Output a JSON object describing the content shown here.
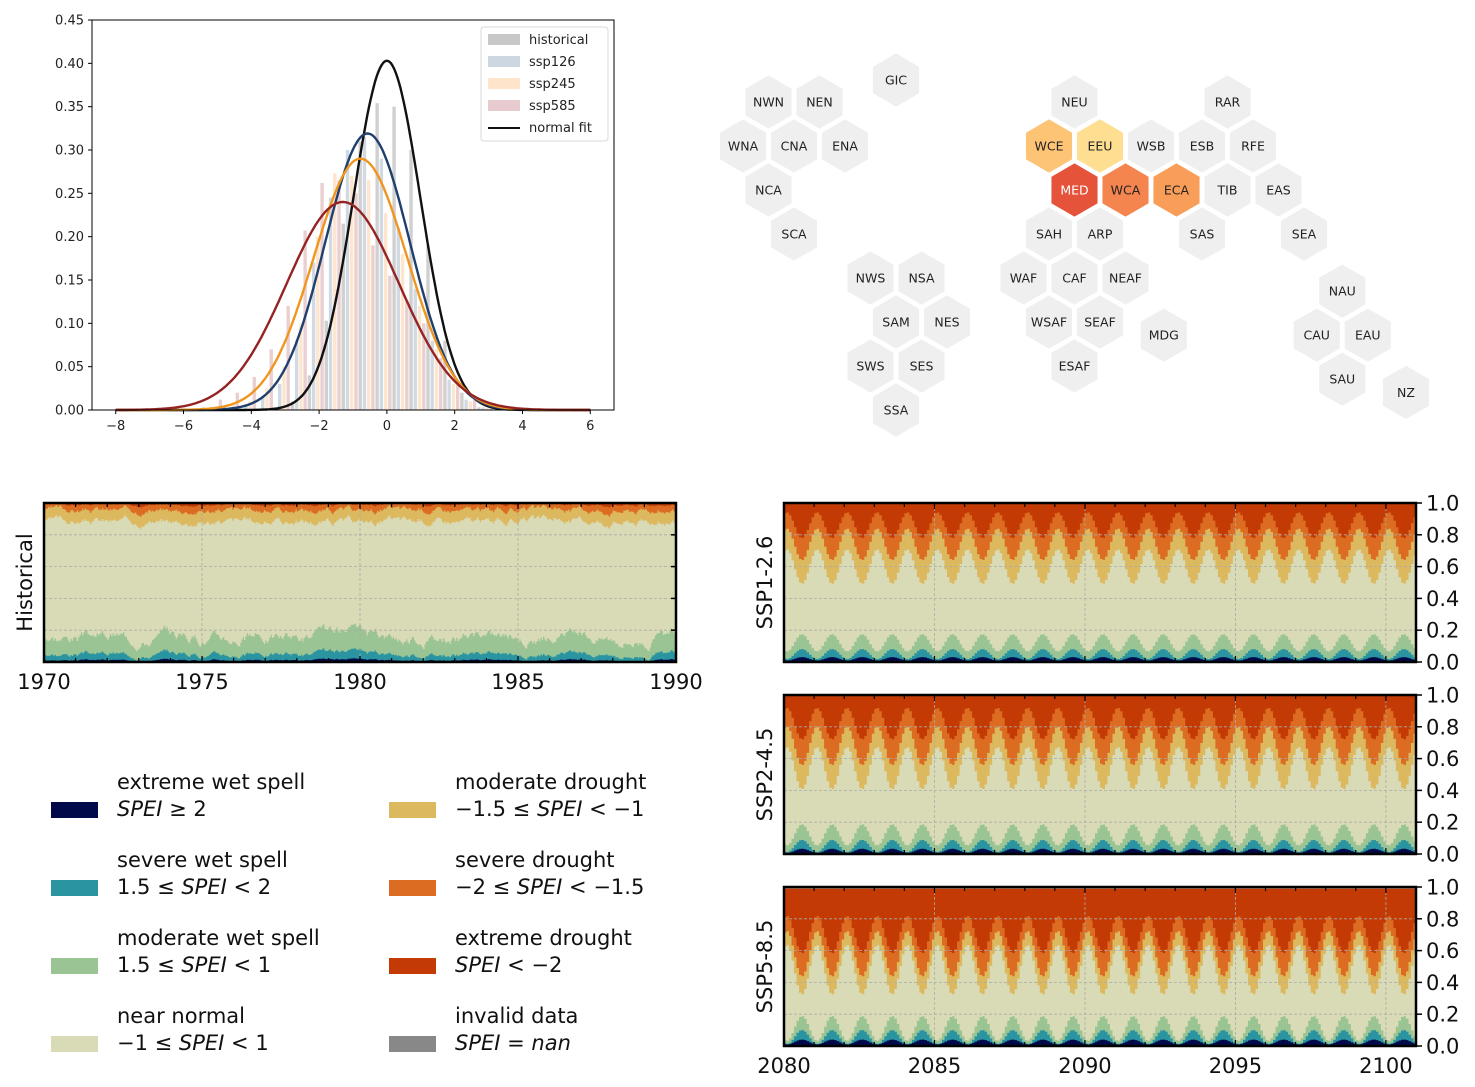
{
  "chart_data": [
    {
      "id": "spei-distribution",
      "type": "bar",
      "title": "",
      "xlabel": "",
      "ylabel": "",
      "xlim": [
        -8.7,
        6.7
      ],
      "ylim": [
        0.0,
        0.45
      ],
      "xticks": [
        -8,
        -6,
        -4,
        -2,
        0,
        2,
        4,
        6
      ],
      "xtick_labels": [
        "−8",
        "−6",
        "−4",
        "−2",
        "0",
        "2",
        "4",
        "6"
      ],
      "yticks": [
        0.0,
        0.05,
        0.1,
        0.15,
        0.2,
        0.25,
        0.3,
        0.35,
        0.4,
        0.45
      ],
      "ytick_labels": [
        "0.00",
        "0.05",
        "0.10",
        "0.15",
        "0.20",
        "0.25",
        "0.30",
        "0.35",
        "0.40",
        "0.45"
      ],
      "grid": false,
      "legend_position": "top-right",
      "bin_centers": [
        -5.6,
        -5.1,
        -4.6,
        -4.1,
        -3.6,
        -3.1,
        -2.6,
        -2.1,
        -1.6,
        -1.1,
        -0.6,
        -0.1,
        0.4,
        0.9,
        1.4,
        1.9,
        2.4,
        2.9
      ],
      "histograms": [
        {
          "name": "historical",
          "color": "#c8c8c8",
          "values": [
            0,
            0,
            0,
            0,
            0,
            0.002,
            0.01,
            0.04,
            0.103,
            0.215,
            0.31,
            0.354,
            0.35,
            0.3,
            0.19,
            0.08,
            0.02,
            0.003
          ]
        },
        {
          "name": "ssp126",
          "color": "#c9d3dd",
          "values": [
            0,
            0,
            0.002,
            0.005,
            0.015,
            0.03,
            0.08,
            0.17,
            0.245,
            0.3,
            0.315,
            0.29,
            0.21,
            0.14,
            0.08,
            0.035,
            0.012,
            0.003
          ]
        },
        {
          "name": "ssp245",
          "color": "#fde1c5",
          "values": [
            0,
            0.002,
            0.007,
            0.01,
            0.025,
            0.05,
            0.1,
            0.2,
            0.273,
            0.27,
            0.265,
            0.227,
            0.18,
            0.12,
            0.07,
            0.03,
            0.01,
            0.002
          ]
        },
        {
          "name": "ssp585",
          "color": "#e6c7c9",
          "values": [
            0.003,
            0.012,
            0.02,
            0.038,
            0.07,
            0.12,
            0.207,
            0.262,
            0.265,
            0.25,
            0.19,
            0.155,
            0.126,
            0.1,
            0.06,
            0.03,
            0.012,
            0.004
          ]
        }
      ],
      "curves": [
        {
          "name": "normal fit",
          "color": "#111111",
          "mean": 0.0,
          "std": 0.99,
          "peak": 0.403,
          "in_legend": true
        },
        {
          "name": "ssp126 fit",
          "color": "#1f3f6e",
          "mean": -0.57,
          "std": 1.25,
          "peak": 0.319,
          "in_legend": false
        },
        {
          "name": "ssp245 fit",
          "color": "#f0961e",
          "mean": -0.78,
          "std": 1.38,
          "peak": 0.29,
          "in_legend": false
        },
        {
          "name": "ssp585 fit",
          "color": "#962323",
          "mean": -1.3,
          "std": 1.66,
          "peak": 0.24,
          "in_legend": false
        }
      ],
      "curve_xrange": [
        -8,
        6
      ],
      "legend": [
        {
          "label": "historical",
          "type": "patch",
          "color": "#c8c8c8"
        },
        {
          "label": "ssp126",
          "type": "patch",
          "color": "#cdd7e2"
        },
        {
          "label": "ssp245",
          "type": "patch",
          "color": "#fde4cb"
        },
        {
          "label": "ssp585",
          "type": "patch",
          "color": "#e8cbce"
        },
        {
          "label": "normal fit",
          "type": "line",
          "color": "#111111"
        }
      ]
    },
    {
      "id": "ipcc-region-hexmap",
      "type": "heatmap",
      "title": "",
      "default_color": "#efefef",
      "regions": [
        {
          "code": "GIC",
          "col": 3.5,
          "row": -0.5,
          "color": "#efefef",
          "text_color": "#222222"
        },
        {
          "code": "NWN",
          "col": 1,
          "row": 0,
          "color": "#efefef",
          "text_color": "#222222"
        },
        {
          "code": "NEN",
          "col": 2,
          "row": 0,
          "color": "#efefef",
          "text_color": "#222222"
        },
        {
          "code": "WNA",
          "col": 0.5,
          "row": 1,
          "color": "#efefef",
          "text_color": "#222222"
        },
        {
          "code": "CNA",
          "col": 1.5,
          "row": 1,
          "color": "#efefef",
          "text_color": "#222222"
        },
        {
          "code": "ENA",
          "col": 2.5,
          "row": 1,
          "color": "#efefef",
          "text_color": "#222222"
        },
        {
          "code": "NCA",
          "col": 1,
          "row": 2,
          "color": "#efefef",
          "text_color": "#222222"
        },
        {
          "code": "SCA",
          "col": 1.5,
          "row": 3,
          "color": "#efefef",
          "text_color": "#222222"
        },
        {
          "code": "NWS",
          "col": 3,
          "row": 4,
          "color": "#efefef",
          "text_color": "#222222"
        },
        {
          "code": "NSA",
          "col": 4,
          "row": 4,
          "color": "#efefef",
          "text_color": "#222222"
        },
        {
          "code": "SAM",
          "col": 3.5,
          "row": 5,
          "color": "#efefef",
          "text_color": "#222222"
        },
        {
          "code": "NES",
          "col": 4.5,
          "row": 5,
          "color": "#efefef",
          "text_color": "#222222"
        },
        {
          "code": "SWS",
          "col": 3,
          "row": 6,
          "color": "#efefef",
          "text_color": "#222222"
        },
        {
          "code": "SES",
          "col": 4,
          "row": 6,
          "color": "#efefef",
          "text_color": "#222222"
        },
        {
          "code": "SSA",
          "col": 3.5,
          "row": 7,
          "color": "#efefef",
          "text_color": "#222222"
        },
        {
          "code": "NEU",
          "col": 7,
          "row": 0,
          "color": "#efefef",
          "text_color": "#222222"
        },
        {
          "code": "RAR",
          "col": 10,
          "row": 0,
          "color": "#efefef",
          "text_color": "#222222"
        },
        {
          "code": "WCE",
          "col": 6.5,
          "row": 1,
          "color": "#fdc475",
          "text_color": "#222222"
        },
        {
          "code": "EEU",
          "col": 7.5,
          "row": 1,
          "color": "#fedf91",
          "text_color": "#222222"
        },
        {
          "code": "WSB",
          "col": 8.5,
          "row": 1,
          "color": "#efefef",
          "text_color": "#222222"
        },
        {
          "code": "ESB",
          "col": 9.5,
          "row": 1,
          "color": "#efefef",
          "text_color": "#222222"
        },
        {
          "code": "RFE",
          "col": 10.5,
          "row": 1,
          "color": "#efefef",
          "text_color": "#222222"
        },
        {
          "code": "MED",
          "col": 7,
          "row": 2,
          "color": "#e5533a",
          "text_color": "#ffffff"
        },
        {
          "code": "WCA",
          "col": 8,
          "row": 2,
          "color": "#f4854f",
          "text_color": "#222222"
        },
        {
          "code": "ECA",
          "col": 9,
          "row": 2,
          "color": "#f89e59",
          "text_color": "#222222"
        },
        {
          "code": "TIB",
          "col": 10,
          "row": 2,
          "color": "#efefef",
          "text_color": "#222222"
        },
        {
          "code": "EAS",
          "col": 11,
          "row": 2,
          "color": "#efefef",
          "text_color": "#222222"
        },
        {
          "code": "SAH",
          "col": 6.5,
          "row": 3,
          "color": "#efefef",
          "text_color": "#222222"
        },
        {
          "code": "ARP",
          "col": 7.5,
          "row": 3,
          "color": "#efefef",
          "text_color": "#222222"
        },
        {
          "code": "SAS",
          "col": 9.5,
          "row": 3,
          "color": "#efefef",
          "text_color": "#222222"
        },
        {
          "code": "SEA",
          "col": 11.5,
          "row": 3,
          "color": "#efefef",
          "text_color": "#222222"
        },
        {
          "code": "WAF",
          "col": 6,
          "row": 4,
          "color": "#efefef",
          "text_color": "#222222"
        },
        {
          "code": "CAF",
          "col": 7,
          "row": 4,
          "color": "#efefef",
          "text_color": "#222222"
        },
        {
          "code": "NEAF",
          "col": 8,
          "row": 4,
          "color": "#efefef",
          "text_color": "#222222"
        },
        {
          "code": "WSAF",
          "col": 6.5,
          "row": 5,
          "color": "#efefef",
          "text_color": "#222222"
        },
        {
          "code": "SEAF",
          "col": 7.5,
          "row": 5,
          "color": "#efefef",
          "text_color": "#222222"
        },
        {
          "code": "MDG",
          "col": 8.75,
          "row": 5.3,
          "color": "#efefef",
          "text_color": "#222222"
        },
        {
          "code": "ESAF",
          "col": 7,
          "row": 6,
          "color": "#efefef",
          "text_color": "#222222"
        },
        {
          "code": "NAU",
          "col": 12.25,
          "row": 4.3,
          "color": "#efefef",
          "text_color": "#222222"
        },
        {
          "code": "CAU",
          "col": 11.75,
          "row": 5.3,
          "color": "#efefef",
          "text_color": "#222222"
        },
        {
          "code": "EAU",
          "col": 12.75,
          "row": 5.3,
          "color": "#efefef",
          "text_color": "#222222"
        },
        {
          "code": "SAU",
          "col": 12.25,
          "row": 6.3,
          "color": "#efefef",
          "text_color": "#222222"
        },
        {
          "code": "NZ",
          "col": 13.5,
          "row": 6.6,
          "color": "#efefef",
          "text_color": "#222222"
        }
      ]
    },
    {
      "id": "spei-category-stack-historical",
      "type": "area",
      "title": "",
      "ylabel": "Historical",
      "xlim": [
        1970,
        1990
      ],
      "ylim": [
        0.0,
        1.0
      ],
      "xticks": [
        1970,
        1975,
        1980,
        1985,
        1990
      ],
      "xtick_labels": [
        "1970",
        "1975",
        "1980",
        "1985",
        "1990"
      ],
      "yticks": [
        0.0,
        0.2,
        0.4,
        0.6,
        0.8,
        1.0
      ],
      "show_ytick_labels": false,
      "grid": true,
      "cumulative_boundaries_mean": {
        "extreme_wet": 0.012,
        "severe_wet": 0.05,
        "moderate_wet": 0.16,
        "near_normal": 0.885,
        "moderate_drought": 0.955,
        "severe_drought": 0.99,
        "extreme_drought": 1.0
      },
      "seasonal_amplitude": 0.0,
      "noise_amplitude": 0.02
    },
    {
      "id": "spei-category-stack-ssp126",
      "type": "area",
      "ylabel": "SSP1-2.6",
      "xlim": [
        2080,
        2101
      ],
      "ylim": [
        0.0,
        1.0
      ],
      "xticks": [
        2080,
        2085,
        2090,
        2095,
        2100
      ],
      "xtick_labels": [
        "2080",
        "2085",
        "2090",
        "2095",
        "2100"
      ],
      "yticks": [
        0.0,
        0.2,
        0.4,
        0.6,
        0.8,
        1.0
      ],
      "ytick_labels": [
        "0.0",
        "0.2",
        "0.4",
        "0.6",
        "0.8",
        "1.0"
      ],
      "show_xtick_labels": false,
      "grid": true,
      "cumulative_boundaries_mean": {
        "extreme_wet": 0.02,
        "severe_wet": 0.05,
        "moderate_wet": 0.12,
        "near_normal": 0.6,
        "moderate_drought": 0.74,
        "severe_drought": 0.86,
        "extreme_drought": 1.0
      },
      "seasonal_amplitude": 0.09
    },
    {
      "id": "spei-category-stack-ssp245",
      "type": "area",
      "ylabel": "SSP2-4.5",
      "xlim": [
        2080,
        2101
      ],
      "ylim": [
        0.0,
        1.0
      ],
      "xticks": [
        2080,
        2085,
        2090,
        2095,
        2100
      ],
      "xtick_labels": [
        "2080",
        "2085",
        "2090",
        "2095",
        "2100"
      ],
      "yticks": [
        0.0,
        0.2,
        0.4,
        0.6,
        0.8,
        1.0
      ],
      "ytick_labels": [
        "0.0",
        "0.2",
        "0.4",
        "0.6",
        "0.8",
        "1.0"
      ],
      "show_xtick_labels": false,
      "grid": true,
      "cumulative_boundaries_mean": {
        "extreme_wet": 0.02,
        "severe_wet": 0.05,
        "moderate_wet": 0.12,
        "near_normal": 0.54,
        "moderate_drought": 0.68,
        "severe_drought": 0.82,
        "extreme_drought": 1.0
      },
      "seasonal_amplitude": 0.11
    },
    {
      "id": "spei-category-stack-ssp585",
      "type": "area",
      "ylabel": "SSP5-8.5",
      "xlim": [
        2080,
        2101
      ],
      "ylim": [
        0.0,
        1.0
      ],
      "xticks": [
        2080,
        2085,
        2090,
        2095,
        2100
      ],
      "xtick_labels": [
        "2080",
        "2085",
        "2090",
        "2095",
        "2100"
      ],
      "yticks": [
        0.0,
        0.2,
        0.4,
        0.6,
        0.8,
        1.0
      ],
      "ytick_labels": [
        "0.0",
        "0.2",
        "0.4",
        "0.6",
        "0.8",
        "1.0"
      ],
      "show_xtick_labels": true,
      "grid": true,
      "cumulative_boundaries_mean": {
        "extreme_wet": 0.025,
        "severe_wet": 0.055,
        "moderate_wet": 0.11,
        "near_normal": 0.48,
        "moderate_drought": 0.58,
        "severe_drought": 0.7,
        "extreme_drought": 0.99
      },
      "seasonal_amplitude": 0.13,
      "invalid_fraction": 0.01
    }
  ],
  "categories": [
    {
      "key": "extreme_wet",
      "name": "extreme wet spell",
      "condition": "SPEI ≥ 2",
      "condition_parts": [
        [
          "it",
          "SPEI"
        ],
        [
          "rm",
          " ≥ 2"
        ]
      ],
      "color": "#000a4a"
    },
    {
      "key": "severe_wet",
      "name": "severe wet spell",
      "condition": "1.5 ≤ SPEI < 2",
      "condition_parts": [
        [
          "rm",
          "1.5 ≤ "
        ],
        [
          "it",
          "SPEI"
        ],
        [
          "rm",
          " < 2"
        ]
      ],
      "color": "#2a94a0"
    },
    {
      "key": "moderate_wet",
      "name": "moderate wet spell",
      "condition": "1.5 ≤ SPEI < 1",
      "condition_parts": [
        [
          "rm",
          "1.5 ≤ "
        ],
        [
          "it",
          "SPEI"
        ],
        [
          "rm",
          " < 1"
        ]
      ],
      "color": "#9bc494"
    },
    {
      "key": "near_normal",
      "name": "near normal",
      "condition": "−1 ≤ SPEI < 1",
      "condition_parts": [
        [
          "rm",
          "−1 ≤ "
        ],
        [
          "it",
          "SPEI"
        ],
        [
          "rm",
          " < 1"
        ]
      ],
      "color": "#d9dab6"
    },
    {
      "key": "moderate_drought",
      "name": "moderate drought",
      "condition": "−1.5 ≤ SPEI < −1",
      "condition_parts": [
        [
          "rm",
          "−1.5 ≤ "
        ],
        [
          "it",
          "SPEI"
        ],
        [
          "rm",
          " < −1"
        ]
      ],
      "color": "#dcb85e"
    },
    {
      "key": "severe_drought",
      "name": "severe drought",
      "condition": "−2 ≤ SPEI < −1.5",
      "condition_parts": [
        [
          "rm",
          "−2 ≤ "
        ],
        [
          "it",
          "SPEI"
        ],
        [
          "rm",
          " < −1.5"
        ]
      ],
      "color": "#dc6c22"
    },
    {
      "key": "extreme_drought",
      "name": "extreme drought",
      "condition": "SPEI < −2",
      "condition_parts": [
        [
          "it",
          "SPEI"
        ],
        [
          "rm",
          " < −2"
        ]
      ],
      "color": "#c33a05"
    },
    {
      "key": "invalid",
      "name": "invalid data",
      "condition": "SPEI = nan",
      "condition_parts": [
        [
          "it",
          "SPEI"
        ],
        [
          "rm",
          " = "
        ],
        [
          "it",
          "nan"
        ]
      ],
      "color": "#888888"
    }
  ]
}
